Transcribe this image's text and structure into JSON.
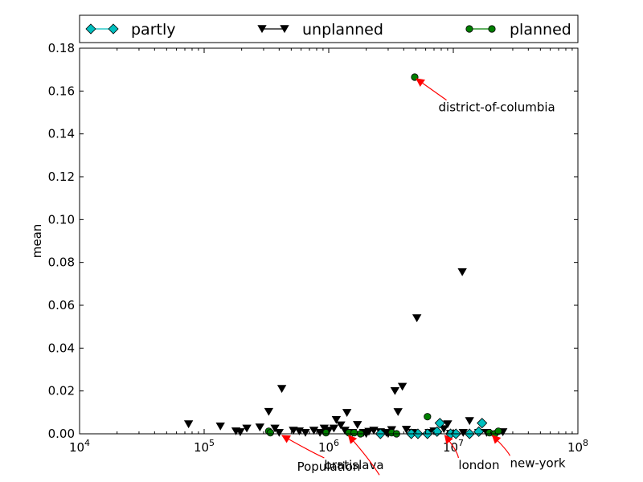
{
  "chart_data": {
    "type": "scatter",
    "title": "",
    "xlabel": "Population",
    "ylabel": "mean",
    "xscale": "log",
    "xlim": [
      10000,
      100000000
    ],
    "ylim": [
      0,
      0.18
    ],
    "x_tick_labels": [
      {
        "base": "10",
        "exp": "4",
        "value": 10000
      },
      {
        "base": "10",
        "exp": "5",
        "value": 100000
      },
      {
        "base": "10",
        "exp": "6",
        "value": 1000000
      },
      {
        "base": "10",
        "exp": "7",
        "value": 10000000
      },
      {
        "base": "10",
        "exp": "8",
        "value": 100000000
      }
    ],
    "y_tick_labels": [
      "0.00",
      "0.02",
      "0.04",
      "0.06",
      "0.08",
      "0.10",
      "0.12",
      "0.14",
      "0.16",
      "0.18"
    ],
    "y_ticks": [
      0,
      0.02,
      0.04,
      0.06,
      0.08,
      0.1,
      0.12,
      0.14,
      0.16,
      0.18
    ],
    "grid": false,
    "legend_position": "top, above plot",
    "series": [
      {
        "name": "partly",
        "marker": "diamond",
        "color": "#00bfbf",
        "points": [
          [
            4600000,
            0.0
          ],
          [
            5200000,
            0.0
          ],
          [
            6200000,
            0.0
          ],
          [
            7400000,
            0.001
          ],
          [
            7800000,
            0.005
          ],
          [
            9500000,
            0.0
          ],
          [
            10500000,
            0.0
          ],
          [
            13500000,
            0.0
          ],
          [
            16000000,
            0.001
          ],
          [
            17000000,
            0.005
          ],
          [
            2600000,
            0.0
          ]
        ]
      },
      {
        "name": "unplanned",
        "marker": "triangle-down",
        "color": "#000000",
        "points": [
          [
            75000,
            0.0045
          ],
          [
            135000,
            0.0035
          ],
          [
            180000,
            0.0012
          ],
          [
            195000,
            0.0008
          ],
          [
            220000,
            0.0025
          ],
          [
            280000,
            0.003
          ],
          [
            330000,
            0.0103
          ],
          [
            370000,
            0.0025
          ],
          [
            420000,
            0.021
          ],
          [
            520000,
            0.0015
          ],
          [
            580000,
            0.0012
          ],
          [
            650000,
            0.0005
          ],
          [
            760000,
            0.0015
          ],
          [
            850000,
            0.0005
          ],
          [
            920000,
            0.0025
          ],
          [
            1000000,
            0.0015
          ],
          [
            1100000,
            0.0025
          ],
          [
            1150000,
            0.0065
          ],
          [
            1250000,
            0.004
          ],
          [
            1350000,
            0.0015
          ],
          [
            1400000,
            0.0098
          ],
          [
            1550000,
            0.0005
          ],
          [
            1700000,
            0.0042
          ],
          [
            1900000,
            0.0005
          ],
          [
            2100000,
            0.001
          ],
          [
            2300000,
            0.0015
          ],
          [
            2600000,
            0.0008
          ],
          [
            2900000,
            0.0005
          ],
          [
            3200000,
            0.0018
          ],
          [
            3400000,
            0.02
          ],
          [
            3600000,
            0.0102
          ],
          [
            3900000,
            0.022
          ],
          [
            4200000,
            0.002
          ],
          [
            4700000,
            0.0005
          ],
          [
            5100000,
            0.054
          ],
          [
            6400000,
            0.0005
          ],
          [
            7000000,
            0.0012
          ],
          [
            8400000,
            0.0022
          ],
          [
            9000000,
            0.0045
          ],
          [
            11800000,
            0.0755
          ],
          [
            13500000,
            0.006
          ],
          [
            16000000,
            0.0005
          ],
          [
            18500000,
            0.0005
          ],
          [
            25000000,
            0.0008
          ],
          [
            400000,
            0.0005
          ],
          [
            2000000,
            0.0
          ],
          [
            3000000,
            0.0
          ],
          [
            9500000,
            0.0
          ],
          [
            12000000,
            0.0005
          ]
        ]
      },
      {
        "name": "planned",
        "marker": "circle",
        "color": "#007f00",
        "points": [
          [
            330000,
            0.0012
          ],
          [
            340000,
            0.0005
          ],
          [
            950000,
            0.0005
          ],
          [
            1450000,
            0.0005
          ],
          [
            1600000,
            0.0005
          ],
          [
            1800000,
            0.0
          ],
          [
            3200000,
            0.0005
          ],
          [
            3500000,
            0.0
          ],
          [
            4900000,
            0.1665
          ],
          [
            6200000,
            0.008
          ],
          [
            19500000,
            0.0005
          ],
          [
            21500000,
            0.0
          ],
          [
            23000000,
            0.0012
          ]
        ]
      }
    ],
    "annotations": [
      {
        "text": "district-of-columbia",
        "point": [
          4900000,
          0.1665
        ],
        "text_anchor": "start",
        "text_at": [
          7600000,
          0.1505
        ]
      },
      {
        "text": "bratislava",
        "point": [
          410000,
          0.0
        ],
        "text_anchor": "start",
        "text_at": [
          920000,
          -0.0165
        ]
      },
      {
        "text": "london",
        "point": [
          8300000,
          0.0
        ],
        "text_anchor": "start",
        "text_at": [
          11000000,
          -0.0165
        ]
      },
      {
        "text": "new-york",
        "point": [
          20000000,
          0.0
        ],
        "text_anchor": "start",
        "text_at": [
          28500000,
          -0.0155
        ]
      },
      {
        "text": "",
        "point": [
          1400000,
          0.0
        ],
        "text_anchor": "start",
        "text_at": [
          2550000,
          -0.0245
        ]
      }
    ]
  }
}
